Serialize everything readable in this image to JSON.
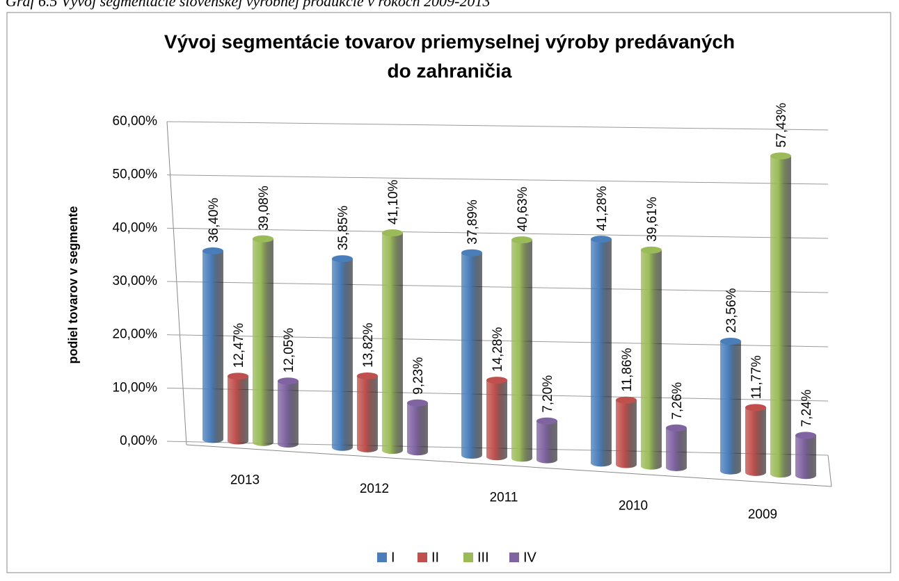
{
  "caption": "Graf 6.5 Vývoj segmentácie slovenskej výrobnej produkcie v rokoch 2009-2013",
  "chart_data": {
    "type": "bar3d",
    "title": [
      "Vývoj segmentácie tovarov priemyselnej výroby predávaných",
      "do zahraničia"
    ],
    "y_label": "podiel tovarov v segmente",
    "categories": [
      "2013",
      "2012",
      "2011",
      "2010",
      "2009"
    ],
    "series": [
      {
        "name": "I",
        "color": "#4a7ebb",
        "values": [
          36.4,
          35.85,
          37.89,
          41.28,
          23.56
        ],
        "value_labels": [
          "36,40%",
          "35,85%",
          "37,89%",
          "41,28%",
          "23,56%"
        ]
      },
      {
        "name": "II",
        "color": "#c0504d",
        "values": [
          12.47,
          13.82,
          14.28,
          11.86,
          11.77
        ],
        "value_labels": [
          "12,47%",
          "13,82%",
          "14,28%",
          "11,86%",
          "11,77%"
        ]
      },
      {
        "name": "III",
        "color": "#9bbb59",
        "values": [
          39.08,
          41.1,
          40.63,
          39.61,
          57.43
        ],
        "value_labels": [
          "39,08%",
          "41,10%",
          "40,63%",
          "39,61%",
          "57,43%"
        ]
      },
      {
        "name": "IV",
        "color": "#8064a2",
        "values": [
          12.05,
          9.23,
          7.2,
          7.26,
          7.24
        ],
        "value_labels": [
          "12,05%",
          "9,23%",
          "7,20%",
          "7,26%",
          "7,24%"
        ]
      }
    ],
    "ylim": [
      0,
      60
    ],
    "yticks": [
      {
        "value": 0,
        "label": "0,00%"
      },
      {
        "value": 10,
        "label": "10,00%"
      },
      {
        "value": 20,
        "label": "20,00%"
      },
      {
        "value": 30,
        "label": "30,00%"
      },
      {
        "value": 40,
        "label": "40,00%"
      },
      {
        "value": 50,
        "label": "50,00%"
      },
      {
        "value": 60,
        "label": "60,00%"
      }
    ],
    "grid": true,
    "legend": "bottom"
  }
}
